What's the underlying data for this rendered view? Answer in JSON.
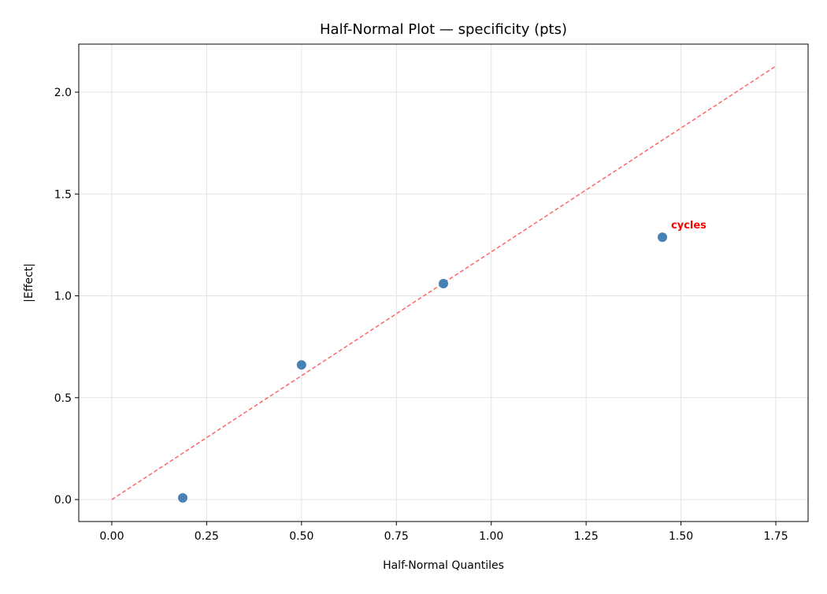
{
  "chart_data": {
    "type": "scatter",
    "title": "Half-Normal Plot — specificity (pts)",
    "xlabel": "Half-Normal Quantiles",
    "ylabel": "|Effect|",
    "xlim": [
      -0.087,
      1.835
    ],
    "ylim": [
      -0.108,
      2.236
    ],
    "xticks": [
      "0.00",
      "0.25",
      "0.50",
      "0.75",
      "1.00",
      "1.25",
      "1.50",
      "1.75"
    ],
    "yticks": [
      "0.0",
      "0.5",
      "1.0",
      "1.5",
      "2.0"
    ],
    "grid": true,
    "points": [
      {
        "x": 0.187,
        "y": 0.008
      },
      {
        "x": 0.5,
        "y": 0.661
      },
      {
        "x": 0.874,
        "y": 1.06
      },
      {
        "x": 1.451,
        "y": 1.288,
        "label": "cycles"
      }
    ],
    "reference_line": {
      "x": [
        0,
        1.75
      ],
      "y": [
        0,
        2.128
      ],
      "style": "dashed"
    },
    "colors": {
      "points": "#4682b4",
      "reference_line": "#ff6666",
      "annotation": "#ff0000"
    }
  }
}
